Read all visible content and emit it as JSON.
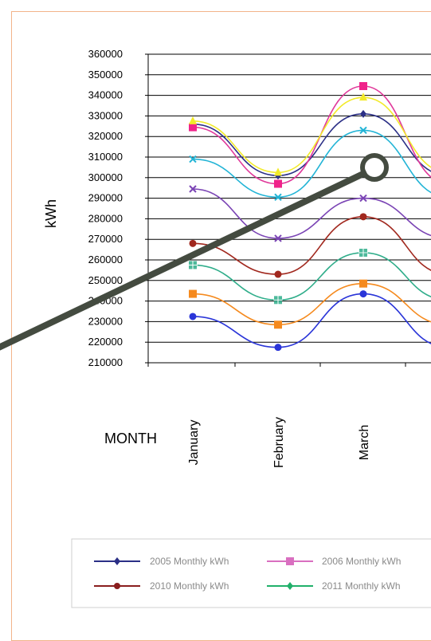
{
  "chart_data": {
    "type": "line",
    "ylabel": "kWh",
    "xlabel": "MONTH",
    "ylim": [
      210000,
      360000
    ],
    "y_ticks": [
      "360000",
      "350000",
      "340000",
      "330000",
      "320000",
      "310000",
      "300000",
      "290000",
      "280000",
      "270000",
      "260000",
      "250000",
      "240000",
      "230000",
      "220000",
      "210000"
    ],
    "categories": [
      "January",
      "February",
      "March"
    ],
    "grid": "horizontal",
    "legend_position": "bottom",
    "series": [
      {
        "name": "2005 Monthly kWh",
        "values": [
          326000,
          301000,
          331000
        ],
        "color": "#2b2f86",
        "marker": "diamond"
      },
      {
        "name": "2006 Monthly kWh",
        "values": [
          324500,
          297000,
          344500
        ],
        "color": "#e0389a",
        "marker": "square",
        "fill": "#f0228a"
      },
      {
        "name": "",
        "values": [
          327500,
          302500,
          339000
        ],
        "color": "#f2ea2a",
        "marker": "triangle"
      },
      {
        "name": "",
        "values": [
          309000,
          290500,
          323000
        ],
        "color": "#22b4d6",
        "marker": "x"
      },
      {
        "name": "",
        "values": [
          294500,
          270500,
          290000
        ],
        "color": "#7b45b5",
        "marker": "x"
      },
      {
        "name": "2010 Monthly kWh",
        "values": [
          268000,
          253000,
          281000
        ],
        "color": "#a1281e",
        "marker": "circle"
      },
      {
        "name": "2011 Monthly kWh",
        "values": [
          257500,
          240500,
          263500
        ],
        "color": "#2fad8a",
        "marker": "plus"
      },
      {
        "name": "",
        "values": [
          243500,
          228500,
          248500
        ],
        "color": "#f58a1e",
        "marker": "square"
      },
      {
        "name": "",
        "values": [
          232500,
          217500,
          243500
        ],
        "color": "#2a35d8",
        "marker": "circle"
      }
    ],
    "legend": [
      {
        "label": "2005 Monthly kWh",
        "color": "#2b2f86",
        "marker": "diamond"
      },
      {
        "label": "2006 Monthly kWh",
        "color": "#d96fc0",
        "marker": "square"
      },
      {
        "label": "2010 Monthly kWh",
        "color": "#8a1e1e",
        "marker": "circle"
      },
      {
        "label": "2011 Monthly kWh",
        "color": "#21b06a",
        "marker": "diamond"
      }
    ],
    "annotation": {
      "type": "pointer-line",
      "color": "#444b40"
    }
  }
}
